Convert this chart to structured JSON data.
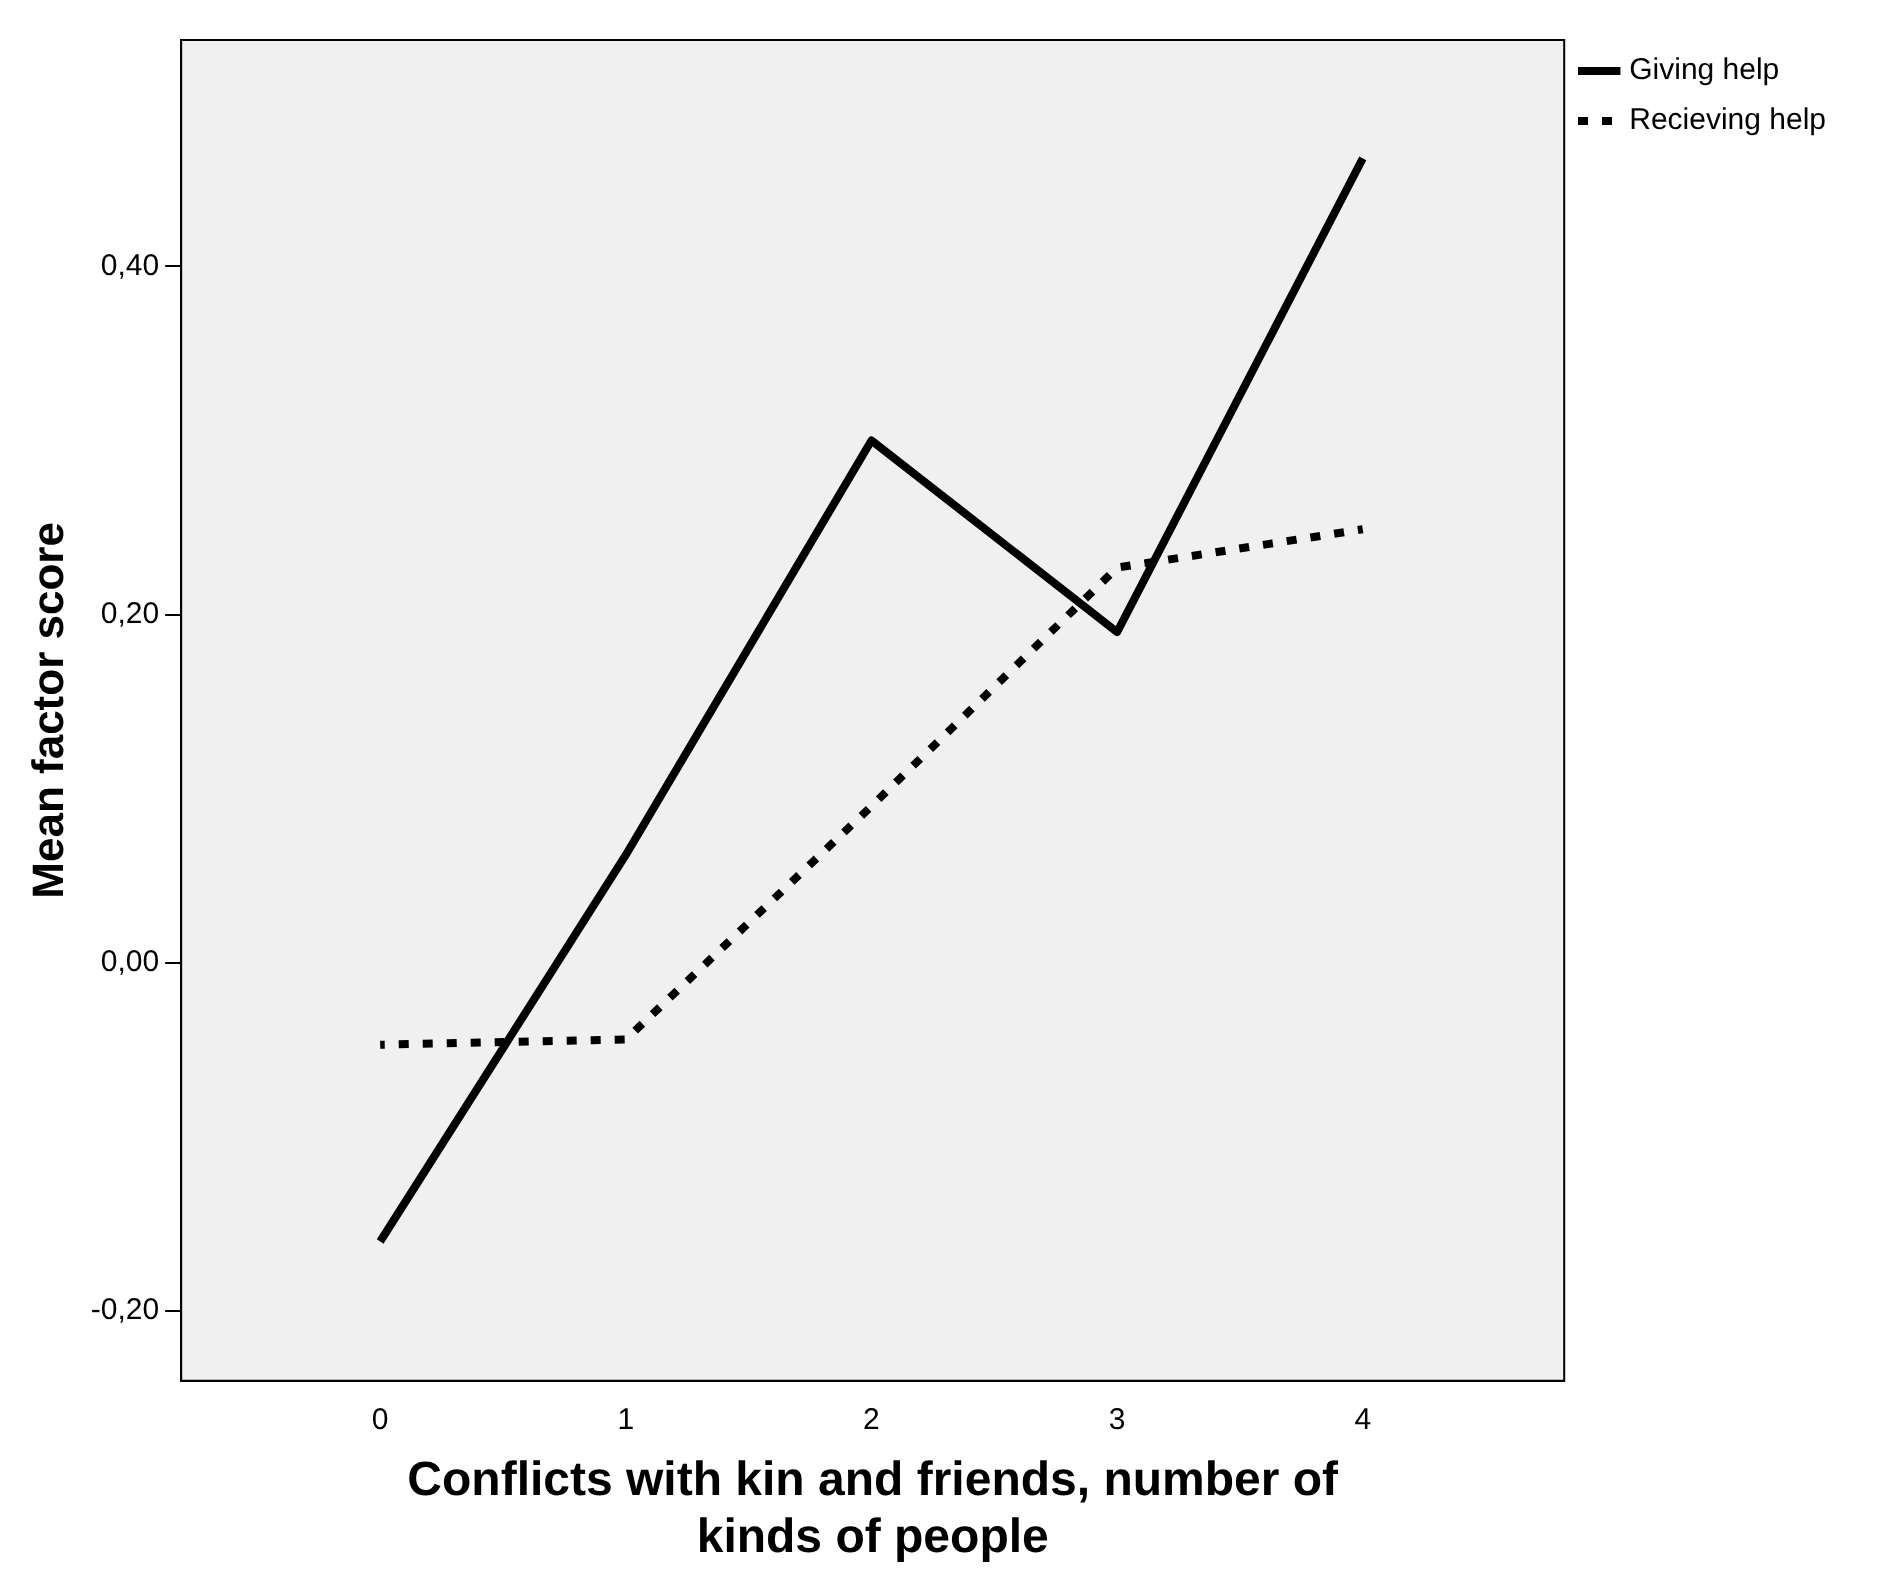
{
  "chart_data": {
    "type": "line",
    "xlabel": "Conflicts with kin and friends, number of kinds of people",
    "ylabel": "Mean factor score",
    "x": [
      0,
      1,
      2,
      3,
      4
    ],
    "xlim": [
      -0.81,
      4.82
    ],
    "xticks": [
      0,
      1,
      2,
      3,
      4
    ],
    "ylim": [
      -0.24,
      0.53
    ],
    "yticks": [
      {
        "value": -0.2,
        "label": "-0,20"
      },
      {
        "value": 0,
        "label": "0,00"
      },
      {
        "value": 0.2,
        "label": "0,20"
      },
      {
        "value": 0.4,
        "label": "0,40"
      }
    ],
    "grid": false,
    "legend": "top right",
    "marker": "none",
    "series": [
      {
        "name": "Giving help",
        "color": "#000000",
        "line_style": "solid",
        "values": [
          -0.16,
          0.062,
          0.3,
          0.19,
          0.462
        ]
      },
      {
        "name": "Recieving help",
        "color": "#000000",
        "line_style": "dotted",
        "values": [
          -0.047,
          -0.044,
          0.09,
          0.227,
          0.249
        ]
      }
    ]
  }
}
